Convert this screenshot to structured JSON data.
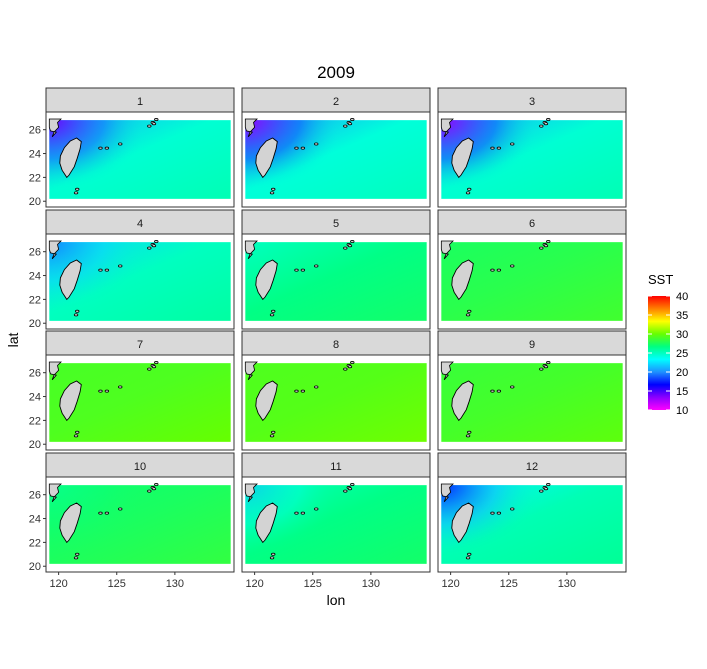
{
  "chart_data": {
    "type": "heatmap",
    "title": "2009",
    "xlabel": "lon",
    "ylabel": "lat",
    "xlim": [
      119,
      135
    ],
    "ylim": [
      20,
      27
    ],
    "x_ticks": [
      120,
      125,
      130
    ],
    "x_tick_labels": [
      "120",
      "125",
      "130"
    ],
    "y_ticks": [
      20,
      22,
      24,
      26
    ],
    "y_tick_labels": [
      "20",
      "22",
      "24",
      "26"
    ],
    "grid": false,
    "legend": {
      "title": "SST",
      "position": "right",
      "range": [
        10,
        40
      ],
      "breaks": [
        10,
        15,
        20,
        25,
        30,
        35,
        40
      ],
      "break_labels": [
        "10",
        "15",
        "20",
        "25",
        "30",
        "35",
        "40"
      ],
      "colors": [
        "#ff00ff",
        "#8b00ff",
        "#0000ff",
        "#1e90ff",
        "#00ffff",
        "#00ff80",
        "#66ff00",
        "#ffff00",
        "#ff8000",
        "#ff0000"
      ]
    },
    "panel_labels": [
      "1",
      "2",
      "3",
      "4",
      "5",
      "6",
      "7",
      "8",
      "9",
      "10",
      "11",
      "12"
    ],
    "panels": [
      {
        "month": "1",
        "base_sst": 24.5,
        "cold_sst": 14,
        "cold_strength": 1.0,
        "north_sst": 21
      },
      {
        "month": "2",
        "base_sst": 24.3,
        "cold_sst": 13,
        "cold_strength": 1.0,
        "north_sst": 20.5
      },
      {
        "month": "3",
        "base_sst": 24.5,
        "cold_sst": 13,
        "cold_strength": 1.0,
        "north_sst": 21
      },
      {
        "month": "4",
        "base_sst": 25.0,
        "cold_sst": 19,
        "cold_strength": 0.7,
        "north_sst": 22
      },
      {
        "month": "5",
        "base_sst": 26.5,
        "cold_sst": 25,
        "cold_strength": 0.2,
        "north_sst": 25
      },
      {
        "month": "6",
        "base_sst": 28.0,
        "cold_sst": 28,
        "cold_strength": 0.0,
        "north_sst": 27.5
      },
      {
        "month": "7",
        "base_sst": 29.2,
        "cold_sst": 29,
        "cold_strength": 0.0,
        "north_sst": 29
      },
      {
        "month": "8",
        "base_sst": 29.4,
        "cold_sst": 29,
        "cold_strength": 0.0,
        "north_sst": 29.2
      },
      {
        "month": "9",
        "base_sst": 28.9,
        "cold_sst": 28,
        "cold_strength": 0.0,
        "north_sst": 28.5
      },
      {
        "month": "10",
        "base_sst": 27.5,
        "cold_sst": 25,
        "cold_strength": 0.3,
        "north_sst": 27
      },
      {
        "month": "11",
        "base_sst": 26.5,
        "cold_sst": 21,
        "cold_strength": 0.6,
        "north_sst": 25
      },
      {
        "month": "12",
        "base_sst": 25.3,
        "cold_sst": 17,
        "cold_strength": 0.9,
        "north_sst": 23
      }
    ],
    "land_color": "#d3d3d3",
    "strip_color": "#d9d9d9"
  }
}
